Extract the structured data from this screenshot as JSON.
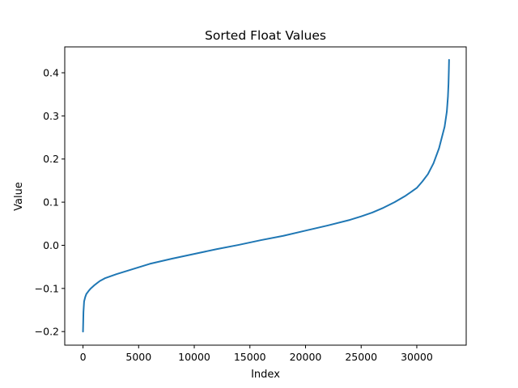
{
  "chart_data": {
    "type": "line",
    "title": "Sorted Float Values",
    "xlabel": "Index",
    "ylabel": "Value",
    "xlim": [
      -1640,
      34440
    ],
    "ylim": [
      -0.2315,
      0.46
    ],
    "xticks": [
      0,
      5000,
      10000,
      15000,
      20000,
      25000,
      30000
    ],
    "yticks": [
      -0.2,
      -0.1,
      0.0,
      0.1,
      0.2,
      0.3,
      0.4
    ],
    "xtick_labels": [
      "0",
      "5000",
      "10000",
      "15000",
      "20000",
      "25000",
      "30000"
    ],
    "ytick_labels": [
      "−0.2",
      "−0.1",
      "0.0",
      "0.1",
      "0.2",
      "0.3",
      "0.4"
    ],
    "grid": false,
    "legend": "none",
    "series": [
      {
        "color": "#1f77b4",
        "x": [
          0,
          40,
          100,
          200,
          300,
          500,
          700,
          1000,
          1500,
          2000,
          3000,
          4000,
          5000,
          6000,
          8000,
          10000,
          12000,
          14000,
          16000,
          18000,
          20000,
          22000,
          24000,
          25000,
          26000,
          27000,
          28000,
          29000,
          30000,
          30500,
          31000,
          31500,
          32000,
          32300,
          32500,
          32700,
          32800,
          32850,
          32880,
          32900
        ],
        "y": [
          -0.2,
          -0.155,
          -0.13,
          -0.12,
          -0.113,
          -0.106,
          -0.1,
          -0.093,
          -0.083,
          -0.076,
          -0.067,
          -0.059,
          -0.051,
          -0.043,
          -0.031,
          -0.02,
          -0.009,
          0.001,
          0.012,
          0.022,
          0.034,
          0.046,
          0.059,
          0.067,
          0.076,
          0.087,
          0.1,
          0.115,
          0.133,
          0.148,
          0.165,
          0.19,
          0.225,
          0.255,
          0.275,
          0.31,
          0.345,
          0.375,
          0.405,
          0.43
        ]
      }
    ]
  }
}
